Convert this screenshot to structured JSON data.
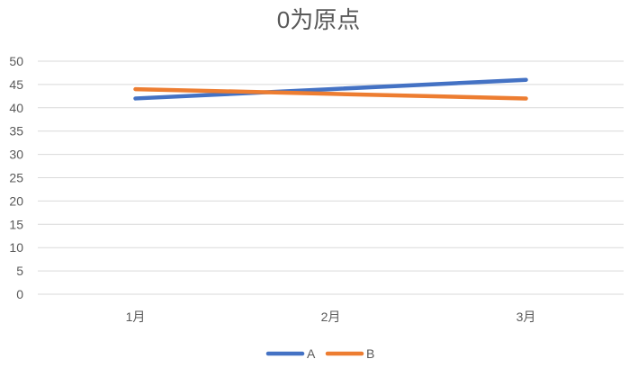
{
  "chart_data": {
    "type": "line",
    "title": "0为原点",
    "categories": [
      "1月",
      "2月",
      "3月"
    ],
    "series": [
      {
        "name": "A",
        "values": [
          42,
          44,
          46
        ],
        "color": "#4472C4"
      },
      {
        "name": "B",
        "values": [
          44,
          43,
          42
        ],
        "color": "#ED7D31"
      }
    ],
    "ylim": [
      0,
      50
    ],
    "yticks": [
      0,
      5,
      10,
      15,
      20,
      25,
      30,
      35,
      40,
      45,
      50
    ],
    "grid": true,
    "legend": "bottom"
  }
}
